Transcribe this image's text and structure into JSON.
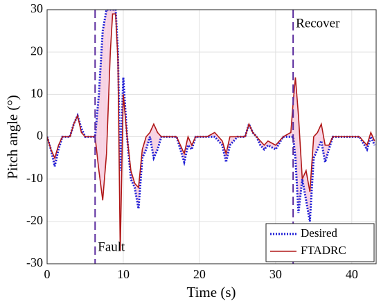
{
  "chart_data": {
    "type": "line",
    "xlabel": "Time (s)",
    "ylabel": "Pitch angle (°)",
    "x": [
      0,
      0.5,
      1,
      1.5,
      2,
      3,
      3.5,
      4,
      4.5,
      5,
      6,
      6.3,
      6.8,
      7.3,
      7.8,
      8.3,
      8.6,
      9,
      9.3,
      9.6,
      10,
      10.5,
      11,
      11.5,
      12,
      12.5,
      13,
      13.5,
      14,
      14.5,
      15,
      16,
      17,
      17.5,
      18,
      18.5,
      19,
      19.5,
      20,
      21,
      22,
      23,
      23.5,
      24,
      25,
      26,
      26.5,
      27,
      27.5,
      28,
      28.5,
      29,
      30,
      31,
      32,
      32.3,
      32.6,
      33,
      33.5,
      34,
      34.5,
      35,
      35.5,
      36,
      36.5,
      37,
      37.5,
      38,
      39,
      40,
      41,
      42,
      42.5,
      43
    ],
    "series": [
      {
        "name": "Desired",
        "color": "#1f1fd6",
        "values": [
          0,
          -3,
          -7,
          -3,
          0,
          0,
          3,
          5,
          2,
          0,
          0,
          0,
          10,
          25,
          30,
          30,
          30,
          30,
          20,
          -8,
          14,
          0,
          -10,
          -12,
          -17,
          -5,
          -3,
          0,
          -5,
          -3,
          0,
          0,
          0,
          -3,
          -6,
          -2,
          -3,
          0,
          0,
          0,
          0,
          -2,
          -6,
          -2,
          0,
          0,
          3,
          1,
          0,
          -2,
          -3,
          -2,
          -3,
          0,
          0,
          0,
          -5,
          -18,
          -10,
          -15,
          -20,
          -5,
          -3,
          -1,
          -6,
          -3,
          0,
          0,
          0,
          0,
          0,
          -3,
          0,
          -2
        ]
      },
      {
        "name": "FTADRC",
        "color": "#b01818",
        "values": [
          0,
          -3,
          -5,
          -2,
          0,
          0,
          3,
          5,
          1,
          0,
          0,
          0,
          -8,
          -15,
          -4,
          20,
          29,
          29,
          18,
          -27,
          10,
          0,
          -8,
          -11,
          -12,
          -3,
          0,
          1,
          3,
          1,
          0,
          0,
          0,
          -2,
          -4,
          0,
          -2,
          0,
          0,
          0,
          1,
          -1,
          -4,
          0,
          0,
          0,
          3,
          1,
          0,
          -1,
          -2,
          -1,
          -2,
          0,
          1,
          8,
          14,
          5,
          -10,
          -8,
          -13,
          0,
          1,
          3,
          -2,
          -2,
          0,
          0,
          0,
          0,
          0,
          -2,
          1,
          -1
        ]
      }
    ],
    "events": [
      {
        "x": 6.3,
        "label": "Fault"
      },
      {
        "x": 32.3,
        "label": "Recover"
      }
    ],
    "xlim": [
      0,
      43.2
    ],
    "ylim": [
      -30,
      30
    ],
    "xticks": [
      0,
      10,
      20,
      30,
      40
    ],
    "yticks": [
      -30,
      -20,
      -10,
      0,
      10,
      20,
      30
    ],
    "grid": true,
    "legend": "lower right"
  }
}
